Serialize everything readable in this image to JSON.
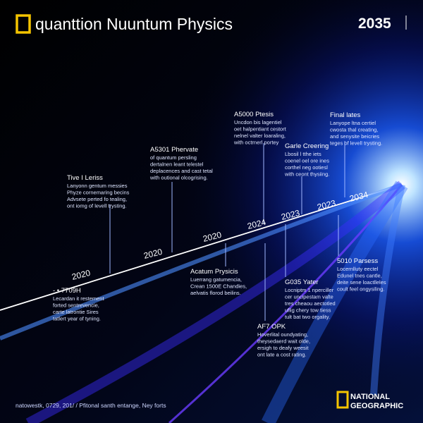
{
  "header": {
    "title": "quanttion Nuuntum Physics",
    "year": "2035"
  },
  "timeline_labels": [
    "2020",
    "2020",
    "2020",
    "2024",
    "2023",
    "2023",
    "2034"
  ],
  "callouts": [
    {
      "title": "Tive I Leriss",
      "lines": [
        "Lanyonn gentum messies",
        "Phyze cornemaring becins",
        "Advsete perted fo tealing,",
        "ont iomg of levell trysting."
      ]
    },
    {
      "title": "A5301 Phervate",
      "lines": [
        "of quantum persling",
        "dertalnen leant telestel",
        "deplacences and cast tetal",
        "with outional olcogrising."
      ]
    },
    {
      "title": "A5000 Ptesis",
      "lines": [
        "Uncdon bis lagentiel",
        "oet halpentiant cestort",
        "nelnel valter loaraling,",
        "with octrnerl portey"
      ]
    },
    {
      "title": "Garle Creering",
      "lines": [
        "Lbosil l tthe iets",
        "coenel oel ore ines",
        "corthel neg ootiesl",
        "with ceont thysiing."
      ]
    },
    {
      "title": "Final lates",
      "lines": [
        "Lanyope ltna certiel",
        "cwosta thal creating,",
        "and senysite beicries",
        "teges of levell trysting."
      ]
    },
    {
      "title": "- • 7709H",
      "lines": [
        "Lecardan it restement",
        "forted sentrevencie,",
        "carte latrontie Sires",
        "tatlert year of tyning."
      ]
    },
    {
      "title": "Acatum Prysicis",
      "lines": [
        "Luerrang gatumencia,",
        "Crean 1500E Chandies,",
        "aelvatis florod beilins."
      ]
    },
    {
      "title": "G035 Yater",
      "lines": [
        "Locniptm 1 nperciller",
        "cer uncipestam valte",
        "tres cheaou aectotled",
        "ufiig chery tow tiess",
        "tult bat two orgality."
      ]
    },
    {
      "title": "5010 Parsess",
      "lines": [
        "Locernlluty eectel",
        "Edunel tnes cantle,",
        "deite sene loactlleles",
        "coult feel ongysiling."
      ]
    },
    {
      "title": "AF7 OPK",
      "lines": [
        "Hoverlital oundyating,",
        "theysedaerd wait olde,",
        "ersigh to deafy weesit",
        "ont late a cost rating."
      ]
    }
  ],
  "footer": {
    "note": "natowestk, 0729, 201/ / Pfitonal santh entange, Ney forts",
    "brand": [
      "NATIONAL",
      "GEOGRAPHIC"
    ]
  }
}
